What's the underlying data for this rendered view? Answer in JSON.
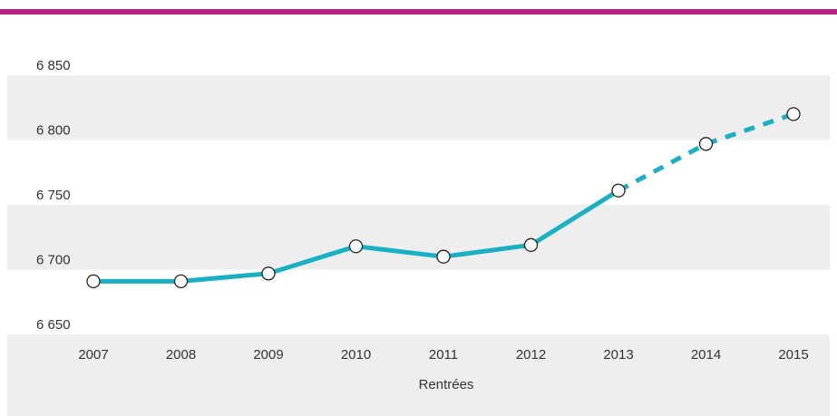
{
  "chart_data": {
    "type": "line",
    "x_label": "Rentrées",
    "categories": [
      "2007",
      "2008",
      "2009",
      "2010",
      "2011",
      "2012",
      "2013",
      "2014",
      "2015"
    ],
    "values": [
      6691,
      6691,
      6697,
      6718,
      6710,
      6719,
      6761,
      6797,
      6820
    ],
    "color": "#1ab0c4",
    "projection_start": "2013",
    "ylim": [
      6650,
      6850
    ],
    "yticks": [
      {
        "value": 6650,
        "label": "6 650"
      },
      {
        "value": 6700,
        "label": "6 700"
      },
      {
        "value": 6750,
        "label": "6 750"
      },
      {
        "value": 6800,
        "label": "6 800"
      },
      {
        "value": 6850,
        "label": "6 850"
      }
    ],
    "bands": true
  }
}
